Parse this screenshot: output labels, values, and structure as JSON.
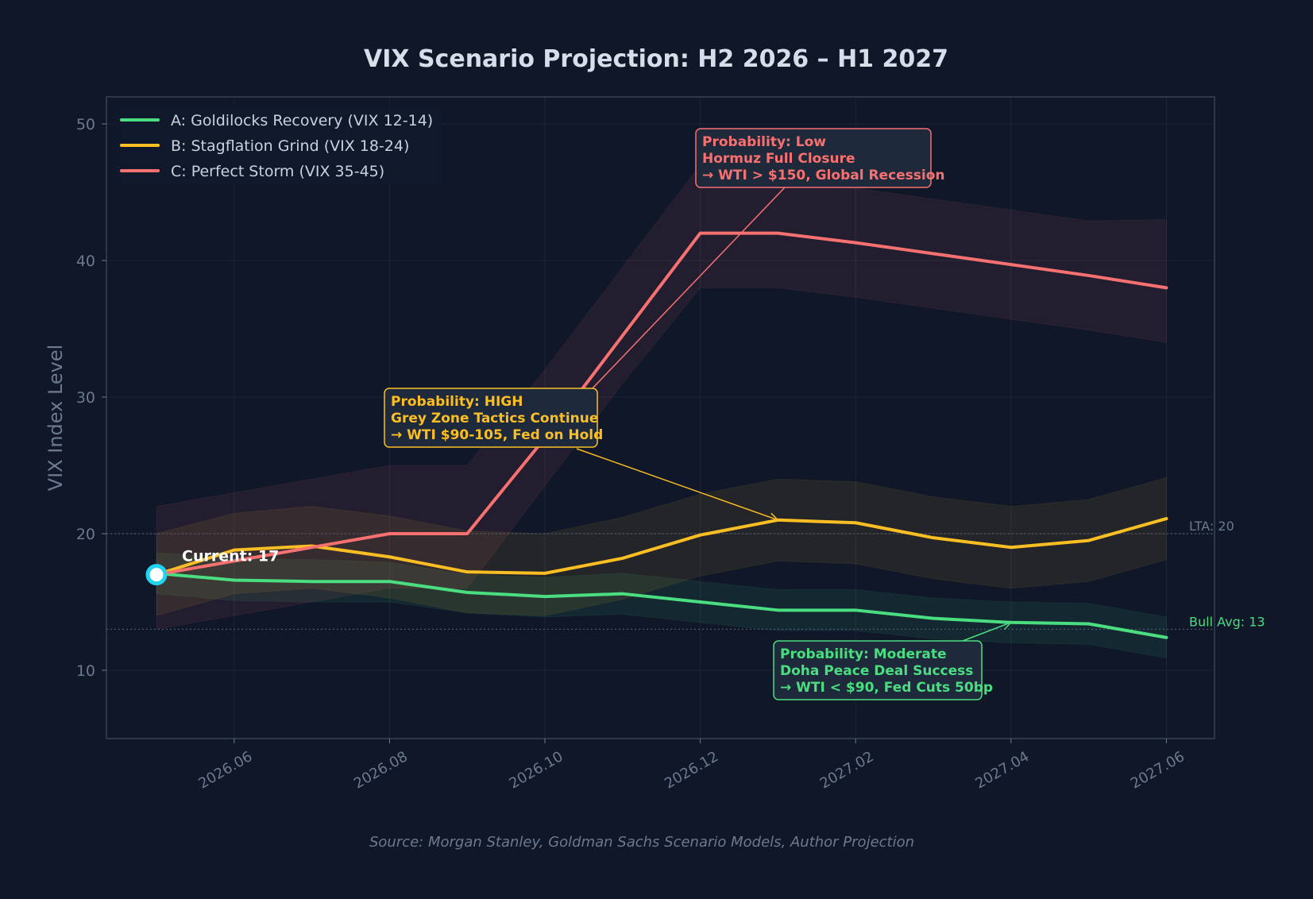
{
  "chart_data": {
    "type": "line",
    "title": "VIX Scenario Projection: H2 2026 – H1 2027",
    "ylabel": "VIX Index Level",
    "xlabel": "",
    "ylim": [
      5,
      52
    ],
    "y_ticks": [
      10,
      20,
      30,
      40,
      50
    ],
    "x": [
      "2026.05",
      "2026.06",
      "2026.07",
      "2026.08",
      "2026.09",
      "2026.10",
      "2026.11",
      "2026.12",
      "2027.01",
      "2027.02",
      "2027.03",
      "2027.04",
      "2027.05",
      "2027.06"
    ],
    "x_ticks": [
      "2026.06",
      "2026.08",
      "2026.10",
      "2026.12",
      "2027.02",
      "2027.04",
      "2027.06"
    ],
    "grid": true,
    "legend_position": "top-left",
    "source": "Source: Morgan Stanley, Goldman Sachs Scenario Models, Author Projection",
    "series": [
      {
        "name": "A: Goldilocks Recovery (VIX 12-14)",
        "color": "#4ade80",
        "values": [
          17.1,
          16.6,
          16.5,
          16.5,
          15.7,
          15.4,
          15.6,
          15.0,
          14.4,
          14.4,
          13.8,
          13.5,
          13.4,
          12.4
        ],
        "band_upper": [
          18.6,
          18.2,
          18.1,
          17.9,
          17.0,
          16.8,
          17.1,
          16.5,
          15.9,
          15.9,
          15.3,
          15.0,
          14.9,
          13.9
        ],
        "band_lower": [
          15.6,
          15.1,
          15.0,
          15.0,
          14.2,
          13.9,
          14.1,
          13.5,
          12.9,
          12.9,
          12.3,
          12.0,
          11.9,
          10.9
        ]
      },
      {
        "name": "B: Stagflation Grind (VIX 18-24)",
        "color": "#fbbf24",
        "values": [
          17,
          18.8,
          19.1,
          18.3,
          17.2,
          17.1,
          18.2,
          19.9,
          21.0,
          20.8,
          19.7,
          19.0,
          19.5,
          21.1
        ],
        "band_upper": [
          20.0,
          21.5,
          22.0,
          21.3,
          20.2,
          20.0,
          21.2,
          22.9,
          24.0,
          23.8,
          22.7,
          22.0,
          22.5,
          24.1
        ],
        "band_lower": [
          14.0,
          15.6,
          16.0,
          15.3,
          14.2,
          14.0,
          15.2,
          16.9,
          18.0,
          17.8,
          16.7,
          16.0,
          16.5,
          18.1
        ]
      },
      {
        "name": "C: Perfect Storm (VIX 35-45)",
        "color": "#f87171",
        "values": [
          17,
          18.0,
          19.0,
          20.0,
          20.0,
          27.0,
          34.5,
          42.0,
          42.0,
          41.3,
          40.5,
          39.7,
          38.9,
          38.0
        ],
        "band_upper": [
          22.0,
          23.0,
          24.0,
          25.0,
          25.0,
          32.0,
          39.5,
          47.0,
          46.0,
          45.3,
          44.5,
          43.7,
          42.9,
          43.0
        ],
        "band_lower": [
          13.0,
          14.0,
          15.0,
          16.0,
          16.0,
          23.5,
          31.0,
          38.0,
          38.0,
          37.3,
          36.5,
          35.7,
          34.9,
          34.0
        ]
      }
    ],
    "reference_lines": [
      {
        "value": 20,
        "label": "LTA: 20",
        "color": "#6b7a90"
      },
      {
        "value": 13,
        "label": "Bull Avg: 13",
        "color": "#4ade80"
      }
    ],
    "current_point": {
      "x": "2026.05",
      "value": 17,
      "label": "Current: 17"
    },
    "annotations": [
      {
        "lines": [
          "Probability: Low",
          "Hormuz Full Closure",
          "→ WTI > $150, Global Recession"
        ],
        "color": "#f87171",
        "target": {
          "x": "2026.10",
          "value": 27.0
        }
      },
      {
        "lines": [
          "Probability: HIGH",
          "Grey Zone Tactics Continue",
          "→ WTI $90-105, Fed on Hold"
        ],
        "color": "#fbbf24",
        "target": {
          "x": "2027.01",
          "value": 21.0
        }
      },
      {
        "lines": [
          "Probability: Moderate",
          "Doha Peace Deal Success",
          "→ WTI < $90, Fed Cuts 50bp"
        ],
        "color": "#4ade80",
        "target": {
          "x": "2027.04",
          "value": 13.5
        }
      }
    ]
  },
  "colors": {
    "background": "#0f1729",
    "plot_border": "#364256",
    "grid": "#1c2638",
    "annotation_bg": "#1e293b",
    "current_marker": "#22d3ee"
  }
}
